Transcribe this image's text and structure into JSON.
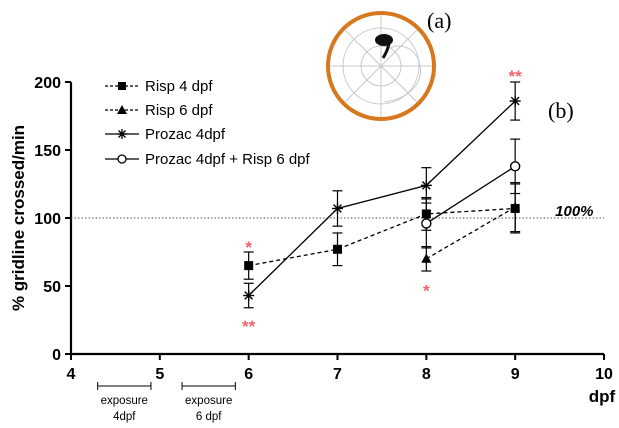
{
  "chart_data": {
    "type": "line",
    "xlabel": "dpf",
    "ylabel": "% gridline crossed/min",
    "xlim": [
      4,
      10
    ],
    "ylim": [
      0,
      200
    ],
    "xticks": [
      4,
      5,
      6,
      7,
      8,
      9,
      10
    ],
    "yticks": [
      0,
      50,
      100,
      150,
      200
    ],
    "legend_position": "top-left",
    "reference_line": {
      "y": 100,
      "label": "100%"
    },
    "series": [
      {
        "name": "Risp 4 dpf",
        "marker": "square",
        "line": "dashed",
        "x": [
          6,
          7,
          8,
          9
        ],
        "y": [
          65,
          77,
          103,
          107
        ],
        "err": [
          10,
          12,
          12,
          18
        ]
      },
      {
        "name": "Risp 6 dpf",
        "marker": "triangle",
        "line": "dashed",
        "x": [
          8,
          9
        ],
        "y": [
          70,
          108
        ],
        "err": [
          9,
          18
        ]
      },
      {
        "name": "Prozac 4dpf",
        "marker": "star",
        "line": "solid",
        "x": [
          6,
          7,
          8,
          9
        ],
        "y": [
          43,
          107,
          124,
          186
        ],
        "err": [
          9,
          13,
          13,
          14
        ]
      },
      {
        "name": "Prozac 4dpf + Risp 6 dpf",
        "marker": "circle",
        "line": "solid",
        "x": [
          8,
          9
        ],
        "y": [
          96,
          138
        ],
        "err": [
          18,
          20
        ]
      }
    ],
    "annotations": [
      {
        "text": "*",
        "x": 6,
        "y": 80,
        "color": "#f0646a"
      },
      {
        "text": "**",
        "x": 6,
        "y": 22,
        "color": "#f0646a"
      },
      {
        "text": "*",
        "x": 8,
        "y": 48,
        "color": "#f0646a"
      },
      {
        "text": "**",
        "x": 9,
        "y": 206,
        "color": "#f0646a"
      }
    ],
    "exposure_notes": [
      {
        "lines": [
          "exposure",
          "4dpf"
        ],
        "from": 4.3,
        "to": 4.9
      },
      {
        "lines": [
          "exposure",
          "6 dpf"
        ],
        "from": 5.25,
        "to": 5.85
      }
    ]
  },
  "panel_labels": {
    "a": "(a)",
    "b": "(b)"
  },
  "colors": {
    "significance": "#f0646a",
    "arena_ring": "#d8781e",
    "arena_grid": "#c8c8c8"
  }
}
